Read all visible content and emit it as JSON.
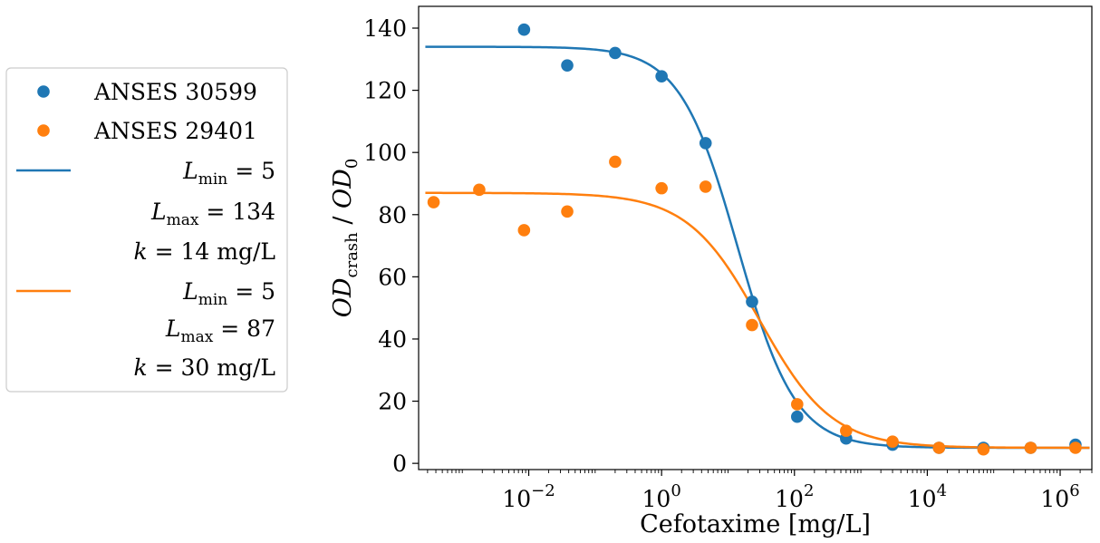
{
  "chart_data": {
    "type": "scatter",
    "xscale": "log",
    "xlabel": "Cefotaxime [mg/L]",
    "ylabel": "OD_crash / OD_0",
    "ylabel_parts": {
      "main": "OD",
      "sub1": "crash",
      "slash": " / ",
      "main2": "OD",
      "sub2": "0"
    },
    "xlim": [
      0.00022,
      3000000
    ],
    "ylim": [
      -2,
      147
    ],
    "x_ticks": [
      {
        "value": 0.01,
        "base": "10",
        "exp": "−2"
      },
      {
        "value": 1,
        "base": "10",
        "exp": "0"
      },
      {
        "value": 100,
        "base": "10",
        "exp": "2"
      },
      {
        "value": 10000,
        "base": "10",
        "exp": "4"
      },
      {
        "value": 1000000,
        "base": "10",
        "exp": "6"
      }
    ],
    "y_ticks": [
      {
        "value": 0,
        "label": "0"
      },
      {
        "value": 20,
        "label": "20"
      },
      {
        "value": 40,
        "label": "40"
      },
      {
        "value": 60,
        "label": "60"
      },
      {
        "value": 80,
        "label": "80"
      },
      {
        "value": 100,
        "label": "100"
      },
      {
        "value": 120,
        "label": "120"
      },
      {
        "value": 140,
        "label": "140"
      }
    ],
    "grid": false,
    "legend_position": "left, outside plot",
    "series": [
      {
        "name": "ANSES 30599",
        "color": "#1f77b4",
        "points": [
          [
            0.0085,
            139.5
          ],
          [
            0.038,
            128
          ],
          [
            0.2,
            132
          ],
          [
            1.0,
            124.5
          ],
          [
            4.6,
            103
          ],
          [
            23,
            52
          ],
          [
            110,
            15
          ],
          [
            600,
            8
          ],
          [
            3000,
            6
          ],
          [
            15000,
            5
          ],
          [
            70000,
            5
          ],
          [
            360000,
            5
          ],
          [
            1700000,
            6
          ]
        ]
      },
      {
        "name": "ANSES 29401",
        "color": "#ff7f0e",
        "points": [
          [
            0.00037,
            84
          ],
          [
            0.0018,
            88
          ],
          [
            0.0085,
            75
          ],
          [
            0.038,
            81
          ],
          [
            0.2,
            97
          ],
          [
            1.0,
            88.5
          ],
          [
            4.6,
            89
          ],
          [
            23,
            44.5
          ],
          [
            110,
            19
          ],
          [
            600,
            10.5
          ],
          [
            3000,
            7
          ],
          [
            15000,
            5
          ],
          [
            70000,
            4.5
          ],
          [
            360000,
            5
          ],
          [
            1700000,
            5
          ]
        ]
      }
    ],
    "fits": [
      {
        "color": "#1f77b4",
        "L_min": 5,
        "L_max": 134,
        "k": 14,
        "n": 1
      },
      {
        "color": "#ff7f0e",
        "L_min": 5,
        "L_max": 87,
        "k": 30,
        "n": 0.8
      }
    ]
  },
  "legend": {
    "entries": [
      {
        "type": "marker",
        "color": "#1f77b4",
        "label": "ANSES 30599"
      },
      {
        "type": "marker",
        "color": "#ff7f0e",
        "label": "ANSES 29401"
      },
      {
        "type": "line",
        "color": "#1f77b4",
        "params": [
          {
            "sym": "L",
            "sub": "min",
            "rest": " = 5"
          },
          {
            "sym": "L",
            "sub": "max",
            "rest": " = 134"
          },
          {
            "sym": "k",
            "sub": "",
            "rest": " = 14 mg/L"
          }
        ]
      },
      {
        "type": "line",
        "color": "#ff7f0e",
        "params": [
          {
            "sym": "L",
            "sub": "min",
            "rest": " = 5"
          },
          {
            "sym": "L",
            "sub": "max",
            "rest": " = 87"
          },
          {
            "sym": "k",
            "sub": "",
            "rest": " = 30 mg/L"
          }
        ]
      }
    ]
  }
}
